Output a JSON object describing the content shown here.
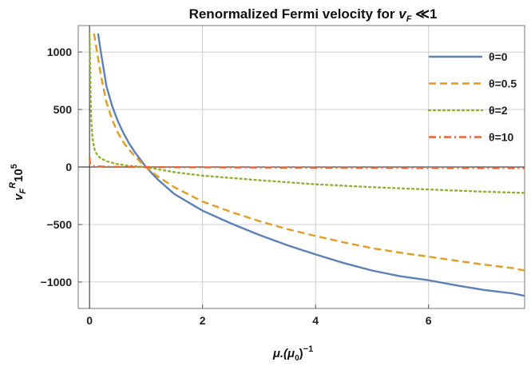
{
  "chart_data": {
    "type": "line",
    "title": "Renormalized Fermi velocity for v_F ≪1",
    "title_parts": {
      "pre": "Renormalized Fermi velocity for ",
      "var": "v",
      "sub": "F",
      "post": " ≪1"
    },
    "xlabel": "μ.(μ0)−1",
    "xlabel_parts": {
      "mu": "μ.(μ",
      "zero": "0",
      "close": ")",
      "exp": "−1"
    },
    "ylabel": "vF^R 10^5",
    "ylabel_parts": {
      "v": "v",
      "sub": "F",
      "sup": "R",
      "ten": "10",
      "exp": "5"
    },
    "xlim": [
      -0.2,
      7.7
    ],
    "ylim": [
      -1230,
      1230
    ],
    "x_ticks": [
      0,
      2,
      4,
      6
    ],
    "x_tick_labels": [
      "0",
      "2",
      "4",
      "6"
    ],
    "y_ticks": [
      -1000,
      -500,
      0,
      500,
      1000
    ],
    "y_tick_labels": [
      "−1000",
      "−500",
      "0",
      "500",
      "1000"
    ],
    "grid": true,
    "legend_position": "top-right",
    "series": [
      {
        "name": "θ=0",
        "color": "#5e81b5",
        "dash": "solid",
        "x": [
          0.15,
          0.2,
          0.3,
          0.4,
          0.5,
          0.6,
          0.7,
          0.8,
          0.9,
          1.0,
          1.2,
          1.5,
          2.0,
          2.5,
          3.0,
          3.5,
          4.0,
          4.5,
          5.0,
          5.5,
          6.0,
          6.5,
          7.0,
          7.5,
          7.7
        ],
        "y": [
          1160,
          1000,
          700,
          530,
          400,
          295,
          205,
          130,
          65,
          0,
          -105,
          -235,
          -380,
          -490,
          -590,
          -680,
          -760,
          -835,
          -900,
          -950,
          -985,
          -1030,
          -1070,
          -1100,
          -1120
        ]
      },
      {
        "name": "θ=0.5",
        "color": "#e19c24",
        "dash": "dashed",
        "x": [
          0.08,
          0.1,
          0.15,
          0.2,
          0.3,
          0.4,
          0.5,
          0.6,
          0.7,
          0.8,
          0.9,
          1.0,
          1.2,
          1.5,
          2.0,
          2.5,
          3.0,
          3.5,
          4.0,
          4.5,
          5.0,
          5.5,
          6.0,
          6.5,
          7.0,
          7.5,
          7.7
        ],
        "y": [
          1160,
          1100,
          950,
          800,
          560,
          410,
          300,
          215,
          150,
          95,
          45,
          0,
          -80,
          -175,
          -300,
          -390,
          -470,
          -540,
          -600,
          -655,
          -705,
          -745,
          -780,
          -815,
          -850,
          -880,
          -900
        ]
      },
      {
        "name": "θ=2",
        "color": "#8fb032",
        "dash": "dotted",
        "x": [
          0.0,
          0.01,
          0.02,
          0.03,
          0.05,
          0.08,
          0.1,
          0.15,
          0.2,
          0.3,
          0.5,
          0.7,
          1.0,
          1.5,
          2.0,
          3.0,
          4.0,
          5.0,
          6.0,
          7.0,
          7.7
        ],
        "y": [
          1160,
          900,
          560,
          400,
          260,
          170,
          135,
          95,
          75,
          50,
          25,
          10,
          0,
          -45,
          -75,
          -115,
          -150,
          -175,
          -195,
          -215,
          -225
        ]
      },
      {
        "name": "θ=10",
        "color": "#eb6235",
        "dash": "dashdot",
        "x": [
          0.0,
          0.003,
          0.005,
          0.008,
          0.01,
          0.02,
          0.05,
          0.1,
          0.3,
          0.6,
          1.0,
          2.0,
          4.0,
          6.0,
          7.7
        ],
        "y": [
          85,
          70,
          50,
          35,
          30,
          18,
          10,
          6,
          2,
          1,
          0,
          -3,
          -6,
          -8,
          -10
        ]
      }
    ]
  }
}
